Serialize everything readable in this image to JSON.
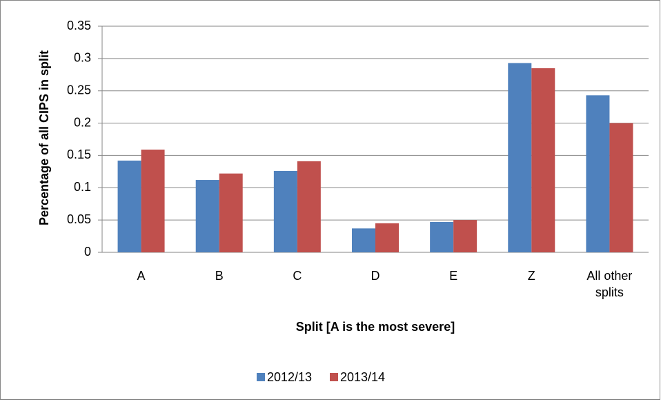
{
  "chart_data": {
    "type": "bar",
    "categories": [
      "A",
      "B",
      "C",
      "D",
      "E",
      "Z",
      "All other splits"
    ],
    "series": [
      {
        "name": "2012/13",
        "color": "#4f81bd",
        "values": [
          0.142,
          0.112,
          0.126,
          0.037,
          0.047,
          0.293,
          0.243
        ]
      },
      {
        "name": "2013/14",
        "color": "#c0504d",
        "values": [
          0.159,
          0.122,
          0.141,
          0.045,
          0.05,
          0.285,
          0.2
        ]
      }
    ],
    "x_label": "Split [A is the most severe]",
    "y_label": "Percentage of all CIPS in split",
    "ylim": [
      0,
      0.35
    ],
    "yticks": [
      0,
      0.05,
      0.1,
      0.15,
      0.2,
      0.25,
      0.3,
      0.35
    ],
    "grid": true,
    "legend": "bottom"
  }
}
